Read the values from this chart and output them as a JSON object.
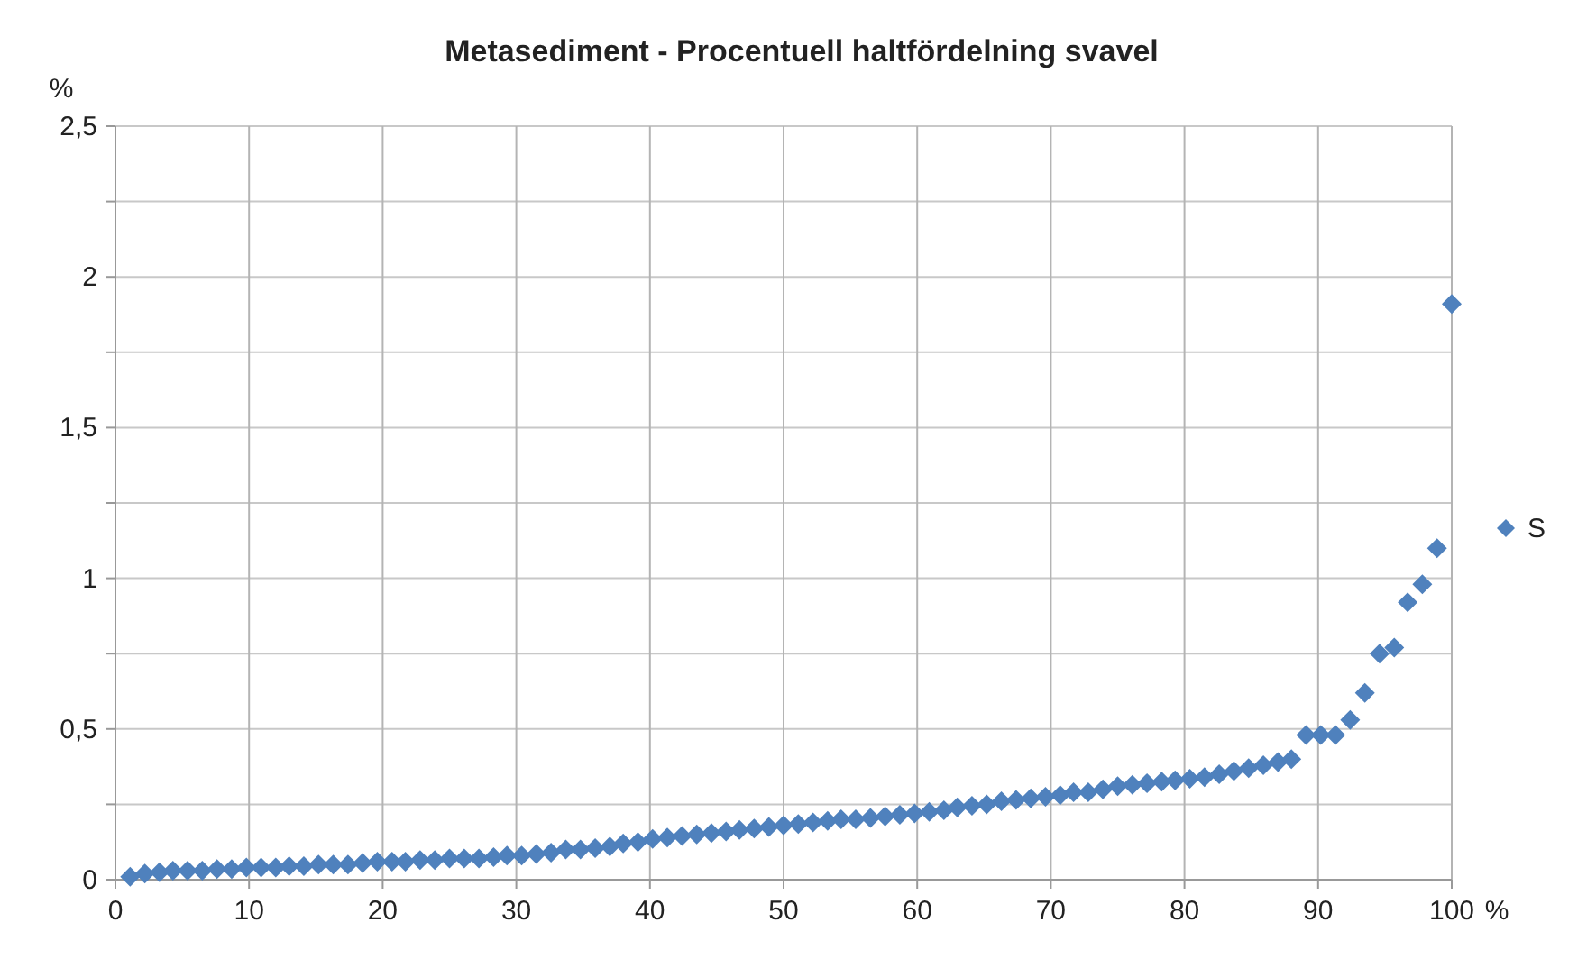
{
  "chart_data": {
    "type": "scatter",
    "title": "Metasediment - Procentuell haltfördelning svavel",
    "xlabel": "%",
    "ylabel": "%",
    "xlim": [
      0,
      100
    ],
    "xticks": [
      0,
      10,
      20,
      30,
      40,
      50,
      60,
      70,
      80,
      90,
      100
    ],
    "ylim": [
      0,
      2.5
    ],
    "yticks": [
      0,
      {
        "value": 0.25,
        "label": null
      },
      {
        "value": 0.5,
        "label": "0,5"
      },
      {
        "value": 0.75,
        "label": null
      },
      1,
      {
        "value": 1.25,
        "label": null
      },
      {
        "value": 1.5,
        "label": "1,5"
      },
      {
        "value": 1.75,
        "label": null
      },
      2,
      {
        "value": 2.25,
        "label": null
      },
      {
        "value": 2.5,
        "label": "2,5"
      }
    ],
    "grid": true,
    "legend": "right",
    "marker": "diamond",
    "series": [
      {
        "name": "S",
        "color": "#4f81bd",
        "x": [
          1.1,
          2.2,
          3.3,
          4.3,
          5.4,
          6.5,
          7.6,
          8.7,
          9.8,
          10.9,
          12.0,
          13.0,
          14.1,
          15.2,
          16.3,
          17.4,
          18.5,
          19.6,
          20.7,
          21.7,
          22.8,
          23.9,
          25.0,
          26.1,
          27.2,
          28.3,
          29.3,
          30.4,
          31.5,
          32.6,
          33.7,
          34.8,
          35.9,
          37.0,
          38.0,
          39.1,
          40.2,
          41.3,
          42.4,
          43.5,
          44.6,
          45.7,
          46.7,
          47.8,
          48.9,
          50.0,
          51.1,
          52.2,
          53.3,
          54.3,
          55.4,
          56.5,
          57.6,
          58.7,
          59.8,
          60.9,
          62.0,
          63.0,
          64.1,
          65.2,
          66.3,
          67.4,
          68.5,
          69.6,
          70.7,
          71.7,
          72.8,
          73.9,
          75.0,
          76.1,
          77.2,
          78.3,
          79.3,
          80.4,
          81.5,
          82.6,
          83.7,
          84.8,
          85.9,
          87.0,
          88.0,
          89.1,
          90.2,
          91.3,
          92.4,
          93.5,
          94.6,
          95.7,
          96.7,
          97.8,
          98.9,
          100
        ],
        "values": [
          0.01,
          0.02,
          0.025,
          0.03,
          0.03,
          0.03,
          0.035,
          0.035,
          0.04,
          0.04,
          0.04,
          0.045,
          0.045,
          0.05,
          0.05,
          0.05,
          0.055,
          0.06,
          0.06,
          0.06,
          0.065,
          0.065,
          0.07,
          0.07,
          0.07,
          0.075,
          0.08,
          0.08,
          0.085,
          0.09,
          0.1,
          0.1,
          0.105,
          0.11,
          0.12,
          0.125,
          0.135,
          0.14,
          0.145,
          0.15,
          0.155,
          0.16,
          0.165,
          0.17,
          0.175,
          0.18,
          0.185,
          0.19,
          0.195,
          0.2,
          0.2,
          0.205,
          0.21,
          0.215,
          0.22,
          0.225,
          0.23,
          0.24,
          0.245,
          0.25,
          0.26,
          0.265,
          0.27,
          0.275,
          0.28,
          0.29,
          0.29,
          0.3,
          0.31,
          0.315,
          0.32,
          0.325,
          0.33,
          0.335,
          0.34,
          0.35,
          0.36,
          0.37,
          0.38,
          0.39,
          0.4,
          0.48,
          0.48,
          0.48,
          0.53,
          0.62,
          0.75,
          0.77,
          0.92,
          0.98,
          1.1,
          1.91
        ]
      }
    ]
  }
}
